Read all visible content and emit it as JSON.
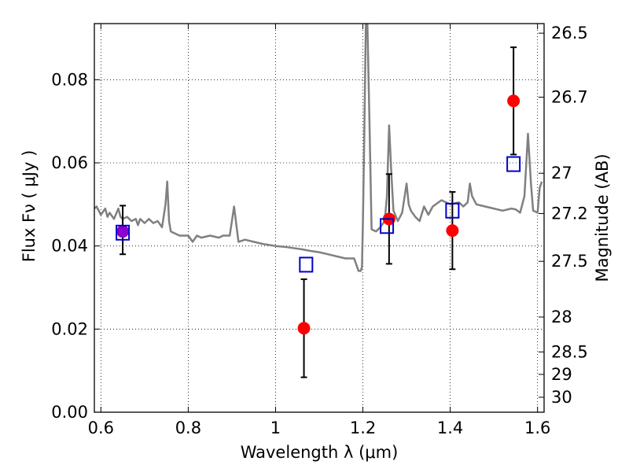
{
  "chart_data": {
    "type": "scatter",
    "xlabel": "Wavelength  λ (μm)",
    "ylabel": "Flux  Fν  ( μJy )",
    "ylabel_right": "Magnitude (AB)",
    "xlim": [
      0.585,
      1.615
    ],
    "ylim": [
      0.0,
      0.0935
    ],
    "x_ticks": [
      0.6,
      0.8,
      1.0,
      1.2,
      1.4,
      1.6
    ],
    "x_tick_labels": [
      "0.6",
      "0.8",
      "1",
      "1.2",
      "1.4",
      "1.6"
    ],
    "y_ticks": [
      0.0,
      0.02,
      0.04,
      0.06,
      0.08
    ],
    "y_tick_labels": [
      "0.00",
      "0.02",
      "0.04",
      "0.06",
      "0.08"
    ],
    "mag_ticks": [
      {
        "label": "26.5",
        "flux": 0.0912
      },
      {
        "label": "26.7",
        "flux": 0.0758
      },
      {
        "label": "27",
        "flux": 0.0575
      },
      {
        "label": "27.2",
        "flux": 0.0478
      },
      {
        "label": "27.5",
        "flux": 0.0363
      },
      {
        "label": "28",
        "flux": 0.0229
      },
      {
        "label": "28.5",
        "flux": 0.0145
      },
      {
        "label": "29",
        "flux": 0.0091
      },
      {
        "label": "30",
        "flux": 0.0036
      }
    ],
    "grid": true,
    "colors": {
      "spectrum": "#808080",
      "observed": "#ff0000",
      "model": "#0000cc",
      "errorbar": "#000000",
      "overlap": "#8b00cc"
    },
    "series": [
      {
        "role": "spectrum",
        "x": [
          0.585,
          0.59,
          0.6,
          0.61,
          0.615,
          0.62,
          0.63,
          0.64,
          0.645,
          0.65,
          0.66,
          0.67,
          0.68,
          0.685,
          0.69,
          0.7,
          0.71,
          0.72,
          0.73,
          0.74,
          0.748,
          0.752,
          0.756,
          0.76,
          0.78,
          0.8,
          0.81,
          0.82,
          0.83,
          0.85,
          0.87,
          0.88,
          0.895,
          0.905,
          0.915,
          0.93,
          0.95,
          0.97,
          1.0,
          1.02,
          1.04,
          1.06,
          1.08,
          1.1,
          1.12,
          1.14,
          1.16,
          1.17,
          1.18,
          1.19,
          1.195,
          1.198,
          1.2,
          1.203,
          1.207,
          1.21,
          1.215,
          1.22,
          1.23,
          1.24,
          1.25,
          1.255,
          1.26,
          1.265,
          1.27,
          1.28,
          1.29,
          1.3,
          1.305,
          1.31,
          1.32,
          1.33,
          1.34,
          1.35,
          1.36,
          1.38,
          1.4,
          1.42,
          1.43,
          1.44,
          1.445,
          1.45,
          1.46,
          1.48,
          1.5,
          1.52,
          1.54,
          1.55,
          1.56,
          1.57,
          1.578,
          1.585,
          1.59,
          1.6,
          1.605,
          1.61
        ],
        "y": [
          0.049,
          0.0495,
          0.0475,
          0.049,
          0.047,
          0.048,
          0.0465,
          0.049,
          0.047,
          0.0465,
          0.047,
          0.046,
          0.0465,
          0.045,
          0.0465,
          0.0455,
          0.0465,
          0.0455,
          0.046,
          0.0445,
          0.05,
          0.0555,
          0.046,
          0.0435,
          0.0425,
          0.0425,
          0.041,
          0.0425,
          0.042,
          0.0425,
          0.042,
          0.0425,
          0.0425,
          0.0495,
          0.041,
          0.0415,
          0.041,
          0.0405,
          0.04,
          0.0398,
          0.0395,
          0.0392,
          0.0388,
          0.0385,
          0.038,
          0.0375,
          0.037,
          0.037,
          0.037,
          0.034,
          0.034,
          0.035,
          0.045,
          0.065,
          0.095,
          0.095,
          0.07,
          0.044,
          0.0435,
          0.0445,
          0.046,
          0.052,
          0.069,
          0.058,
          0.0485,
          0.046,
          0.048,
          0.055,
          0.05,
          0.0485,
          0.047,
          0.046,
          0.0495,
          0.0475,
          0.0495,
          0.051,
          0.05,
          0.0505,
          0.0495,
          0.0505,
          0.055,
          0.052,
          0.05,
          0.0495,
          0.049,
          0.0485,
          0.049,
          0.0488,
          0.048,
          0.052,
          0.067,
          0.055,
          0.0485,
          0.048,
          0.054,
          0.0555
        ]
      },
      {
        "role": "observed",
        "x": [
          0.65,
          1.065,
          1.26,
          1.405,
          1.545
        ],
        "y": [
          0.0435,
          0.0202,
          0.0465,
          0.0437,
          0.0749
        ],
        "yerr_low": [
          0.0055,
          0.0118,
          0.0108,
          0.0093,
          0.0129
        ],
        "yerr_high": [
          0.0062,
          0.0118,
          0.0108,
          0.0093,
          0.0129
        ]
      },
      {
        "role": "model",
        "x": [
          0.65,
          1.07,
          1.255,
          1.405,
          1.545
        ],
        "y": [
          0.0432,
          0.0355,
          0.0448,
          0.0485,
          0.0597
        ]
      }
    ]
  }
}
